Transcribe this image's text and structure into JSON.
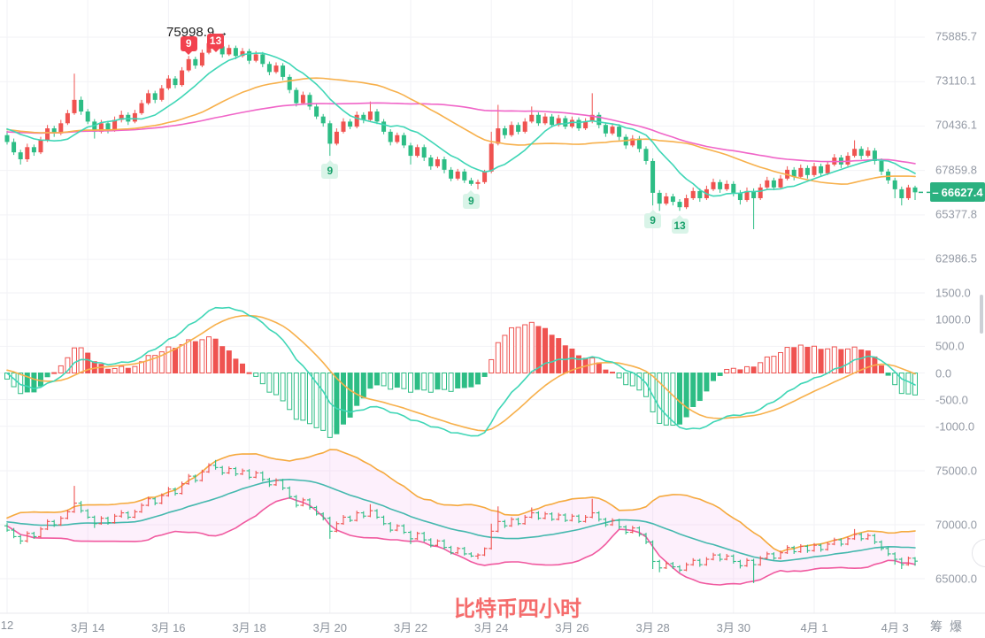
{
  "title": {
    "text": "比特币四小时"
  },
  "price_tag": {
    "dash": "–",
    "value": "66627.4"
  },
  "annotation": {
    "text": "75998.9",
    "arrow": "→"
  },
  "side_buttons": {
    "chip": "筹",
    "burst": "爆"
  },
  "axes": {
    "price_labels": [
      75885.7,
      73110.1,
      70436.1,
      67859.8,
      65377.8,
      62986.5
    ],
    "macd_labels": [
      1500.0,
      1000.0,
      500.0,
      0.0,
      -500.0,
      -1000.0
    ],
    "bottom_labels": [
      75000.0,
      70000.0,
      65000.0
    ],
    "x_ticks": [
      {
        "i": 0,
        "label": "12"
      },
      {
        "i": 12,
        "label": "3月 14"
      },
      {
        "i": 24,
        "label": "3月 16"
      },
      {
        "i": 36,
        "label": "3月 18"
      },
      {
        "i": 48,
        "label": "3月 20"
      },
      {
        "i": 60,
        "label": "3月 22"
      },
      {
        "i": 72,
        "label": "3月 24"
      },
      {
        "i": 84,
        "label": "3月 26"
      },
      {
        "i": 96,
        "label": "3月 28"
      },
      {
        "i": 108,
        "label": "3月 30"
      },
      {
        "i": 120,
        "label": "4月 1"
      },
      {
        "i": 132,
        "label": "4月 3"
      }
    ]
  },
  "markers": [
    {
      "i": 27,
      "n": "9",
      "color": "red",
      "dy": -22
    },
    {
      "i": 31,
      "n": "13",
      "color": "red",
      "dy": -2
    },
    {
      "i": 48,
      "n": "9",
      "color": "green"
    },
    {
      "i": 69,
      "n": "9",
      "color": "green"
    },
    {
      "i": 96,
      "n": "9",
      "color": "green"
    },
    {
      "i": 100,
      "n": "13",
      "color": "green"
    }
  ],
  "colors": {
    "up": "#ef5350",
    "down": "#2dbd85",
    "ma_fast": "#3fd6b6",
    "ma_mid": "#f7b04b",
    "ma_slow": "#f065c8",
    "dif": "#3fd6b6",
    "dea": "#f7b04b",
    "boll_upper": "#f5a93e",
    "boll_mid": "#45b8ae",
    "boll_lower": "#f0599f",
    "boll_fill": "rgba(240,160,235,0.16)",
    "grid": "#f2f2f6",
    "separator": "#e8e8ec",
    "axis_text": "#949aa5",
    "date_text": "#8b929c",
    "tag_bg": "#2bb180",
    "title": "#f56c6c",
    "badge_red": "#f2414e",
    "badge_green_bg": "#d9f4e8",
    "badge_green_text": "#18a06a",
    "annotation_text": "#1e1e1e"
  },
  "chart_data": {
    "type": "candlestick",
    "panels": [
      {
        "name": "price",
        "indicators": [
          "MA fast (teal)",
          "MA mid (orange)",
          "MA slow (magenta)"
        ],
        "scale": "log",
        "y_labels": [
          75885.7,
          73110.1,
          70436.1,
          67859.8,
          65377.8,
          62986.5
        ],
        "last_price": 66627.4,
        "session_high_annotation": 75998.9
      },
      {
        "name": "MACD",
        "params": "12/26/9",
        "y_labels": [
          1500.0,
          1000.0,
          500.0,
          0.0,
          -500.0,
          -1000.0
        ]
      },
      {
        "name": "BOLL",
        "params": "20,2",
        "style": "ohlc-bars with band fill",
        "y_labels": [
          75000.0,
          70000.0,
          65000.0
        ]
      }
    ],
    "interval": "4h",
    "td_sequential_markers": [
      {
        "index": 27,
        "count": 9,
        "side": "sell"
      },
      {
        "index": 31,
        "count": 13,
        "side": "sell"
      },
      {
        "index": 48,
        "count": 9,
        "side": "buy"
      },
      {
        "index": 69,
        "count": 9,
        "side": "buy"
      },
      {
        "index": 96,
        "count": 9,
        "side": "buy"
      },
      {
        "index": 100,
        "count": 13,
        "side": "buy"
      }
    ],
    "candles_ohlc": [
      [
        69900,
        70150,
        69350,
        69500
      ],
      [
        69500,
        69700,
        68750,
        68900
      ],
      [
        68900,
        69050,
        68200,
        68500
      ],
      [
        68500,
        69400,
        68350,
        69200
      ],
      [
        69200,
        69350,
        68700,
        68900
      ],
      [
        68900,
        69800,
        68800,
        69600
      ],
      [
        69600,
        70500,
        69500,
        70300
      ],
      [
        70300,
        70450,
        69800,
        70000
      ],
      [
        70000,
        70800,
        69900,
        70600
      ],
      [
        70600,
        71400,
        70500,
        71200
      ],
      [
        71200,
        73600,
        71100,
        72000
      ],
      [
        72000,
        72200,
        71100,
        71300
      ],
      [
        71300,
        71450,
        70550,
        70700
      ],
      [
        70700,
        70850,
        69700,
        70100
      ],
      [
        70100,
        70800,
        70000,
        70600
      ],
      [
        70600,
        70750,
        70000,
        70200
      ],
      [
        70200,
        71000,
        70100,
        70800
      ],
      [
        70800,
        71350,
        70650,
        71100
      ],
      [
        71100,
        71250,
        70500,
        70700
      ],
      [
        70700,
        71400,
        70600,
        71200
      ],
      [
        71200,
        72000,
        71100,
        71800
      ],
      [
        71800,
        72600,
        71700,
        72400
      ],
      [
        72400,
        72550,
        71800,
        72000
      ],
      [
        72000,
        72900,
        71900,
        72700
      ],
      [
        72700,
        73500,
        72600,
        73300
      ],
      [
        73300,
        73450,
        72700,
        72900
      ],
      [
        72900,
        74000,
        72800,
        73800
      ],
      [
        73800,
        74700,
        73700,
        74500
      ],
      [
        74500,
        74650,
        73900,
        74100
      ],
      [
        74100,
        75100,
        74000,
        74900
      ],
      [
        74900,
        75700,
        74800,
        75500
      ],
      [
        75500,
        75998.9,
        75100,
        75300
      ],
      [
        75300,
        75450,
        74600,
        74800
      ],
      [
        74800,
        75400,
        74700,
        75200
      ],
      [
        75200,
        75350,
        74500,
        74700
      ],
      [
        74700,
        75200,
        74600,
        75000
      ],
      [
        75000,
        75150,
        74200,
        74400
      ],
      [
        74400,
        75000,
        74300,
        74800
      ],
      [
        74800,
        74950,
        74000,
        74200
      ],
      [
        74200,
        74350,
        73500,
        73700
      ],
      [
        73700,
        74300,
        73600,
        74100
      ],
      [
        74100,
        74250,
        73200,
        73400
      ],
      [
        73400,
        73550,
        72400,
        72600
      ],
      [
        72600,
        72750,
        71600,
        71800
      ],
      [
        71800,
        72500,
        71700,
        72300
      ],
      [
        72300,
        72450,
        71400,
        71600
      ],
      [
        71600,
        71750,
        70850,
        71000
      ],
      [
        71000,
        71150,
        70400,
        70600
      ],
      [
        70600,
        70750,
        68700,
        69400
      ],
      [
        69400,
        70300,
        69300,
        70100
      ],
      [
        70100,
        70900,
        70000,
        70700
      ],
      [
        70700,
        70850,
        70250,
        70400
      ],
      [
        70400,
        71300,
        70300,
        71100
      ],
      [
        71100,
        71250,
        70600,
        70800
      ],
      [
        70800,
        71900,
        70700,
        71300
      ],
      [
        71300,
        71450,
        70550,
        70700
      ],
      [
        70700,
        70850,
        69950,
        70100
      ],
      [
        70100,
        70250,
        69300,
        69500
      ],
      [
        69500,
        70050,
        69400,
        69900
      ],
      [
        69900,
        70050,
        69150,
        69300
      ],
      [
        69300,
        69450,
        68200,
        68700
      ],
      [
        68700,
        69350,
        68600,
        69200
      ],
      [
        69200,
        69350,
        68400,
        68600
      ],
      [
        68600,
        68750,
        67900,
        68100
      ],
      [
        68100,
        68650,
        68000,
        68500
      ],
      [
        68500,
        68650,
        67700,
        67900
      ],
      [
        67900,
        68050,
        67250,
        67400
      ],
      [
        67400,
        67950,
        67300,
        67800
      ],
      [
        67800,
        67950,
        67150,
        67300
      ],
      [
        67300,
        67450,
        67000,
        67100
      ],
      [
        67100,
        67350,
        66800,
        67200
      ],
      [
        67200,
        67900,
        67100,
        67800
      ],
      [
        67800,
        70100,
        67700,
        69400
      ],
      [
        69400,
        71700,
        69300,
        70300
      ],
      [
        70300,
        70450,
        69700,
        69900
      ],
      [
        69900,
        70700,
        69800,
        70500
      ],
      [
        70500,
        70650,
        69950,
        70100
      ],
      [
        70100,
        70900,
        70000,
        70700
      ],
      [
        70700,
        71600,
        70600,
        71100
      ],
      [
        71100,
        71250,
        70450,
        70600
      ],
      [
        70600,
        71200,
        70500,
        71000
      ],
      [
        71000,
        71150,
        70350,
        70500
      ],
      [
        70500,
        71100,
        70400,
        70900
      ],
      [
        70900,
        71050,
        70250,
        70400
      ],
      [
        70400,
        71000,
        70300,
        70800
      ],
      [
        70800,
        70950,
        70150,
        70300
      ],
      [
        70300,
        70900,
        70200,
        70700
      ],
      [
        70700,
        72400,
        70600,
        71100
      ],
      [
        71100,
        71250,
        70300,
        70500
      ],
      [
        70500,
        70650,
        69800,
        70000
      ],
      [
        70000,
        70600,
        69900,
        70400
      ],
      [
        70400,
        70550,
        69600,
        69800
      ],
      [
        69800,
        69950,
        69100,
        69300
      ],
      [
        69300,
        69900,
        69200,
        69700
      ],
      [
        69700,
        69850,
        68900,
        69100
      ],
      [
        69100,
        69250,
        68200,
        68400
      ],
      [
        68400,
        68550,
        65900,
        66600
      ],
      [
        66600,
        66750,
        65600,
        66000
      ],
      [
        66000,
        66600,
        65900,
        66400
      ],
      [
        66400,
        66550,
        65900,
        66100
      ],
      [
        66100,
        66250,
        65600,
        65800
      ],
      [
        65800,
        66500,
        65700,
        66300
      ],
      [
        66300,
        66900,
        66200,
        66700
      ],
      [
        66700,
        66850,
        66100,
        66300
      ],
      [
        66300,
        67000,
        66200,
        66800
      ],
      [
        66800,
        67400,
        66700,
        67200
      ],
      [
        67200,
        67350,
        66600,
        66800
      ],
      [
        66800,
        67300,
        66700,
        67100
      ],
      [
        67100,
        67250,
        66400,
        66600
      ],
      [
        66600,
        66750,
        65950,
        66200
      ],
      [
        66200,
        66900,
        66100,
        66700
      ],
      [
        66700,
        66850,
        64600,
        66300
      ],
      [
        66300,
        67100,
        66200,
        66900
      ],
      [
        66900,
        67500,
        66800,
        67300
      ],
      [
        67300,
        67450,
        66750,
        66900
      ],
      [
        66900,
        67600,
        66800,
        67400
      ],
      [
        67400,
        68100,
        67300,
        67900
      ],
      [
        67900,
        68050,
        67300,
        67500
      ],
      [
        67500,
        68200,
        67400,
        68000
      ],
      [
        68000,
        68150,
        67400,
        67600
      ],
      [
        67600,
        68300,
        67500,
        68100
      ],
      [
        68100,
        68250,
        67500,
        67700
      ],
      [
        67700,
        68400,
        67600,
        68200
      ],
      [
        68200,
        68800,
        68100,
        68600
      ],
      [
        68600,
        68750,
        68000,
        68200
      ],
      [
        68200,
        68900,
        68100,
        68700
      ],
      [
        68700,
        69600,
        68600,
        69100
      ],
      [
        69100,
        69250,
        68500,
        68700
      ],
      [
        68700,
        69200,
        68600,
        69000
      ],
      [
        69000,
        69150,
        68200,
        68400
      ],
      [
        68400,
        68550,
        67600,
        67800
      ],
      [
        67800,
        67950,
        67100,
        67300
      ],
      [
        67300,
        67450,
        66300,
        66800
      ],
      [
        66800,
        66950,
        65900,
        66300
      ],
      [
        66300,
        67050,
        66200,
        66900
      ],
      [
        66900,
        67000,
        66200,
        66627.4
      ]
    ]
  }
}
